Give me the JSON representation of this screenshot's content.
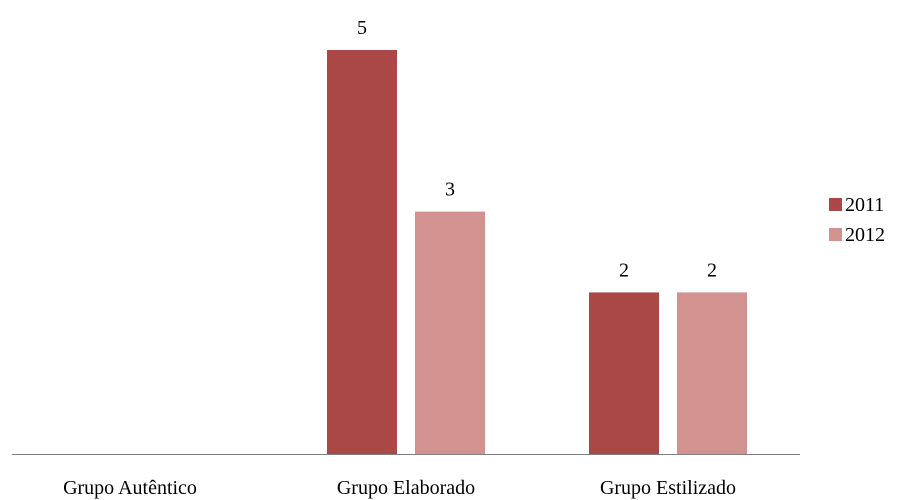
{
  "chart_data": {
    "type": "bar",
    "categories": [
      "Grupo Autêntico",
      "Grupo Elaborado",
      "Grupo Estilizado"
    ],
    "series": [
      {
        "name": "2011",
        "values": [
          0,
          5,
          2
        ],
        "color": "#a94845"
      },
      {
        "name": "2012",
        "values": [
          0,
          3,
          2
        ],
        "color": "#d29290"
      }
    ],
    "data_labels": [
      [
        null,
        "5",
        "2"
      ],
      [
        null,
        "3",
        "2"
      ]
    ],
    "title": "",
    "xlabel": "",
    "ylabel": "",
    "ylim": [
      0,
      5
    ],
    "grid": false,
    "legend_position": "right",
    "axis_color": "#808080"
  }
}
